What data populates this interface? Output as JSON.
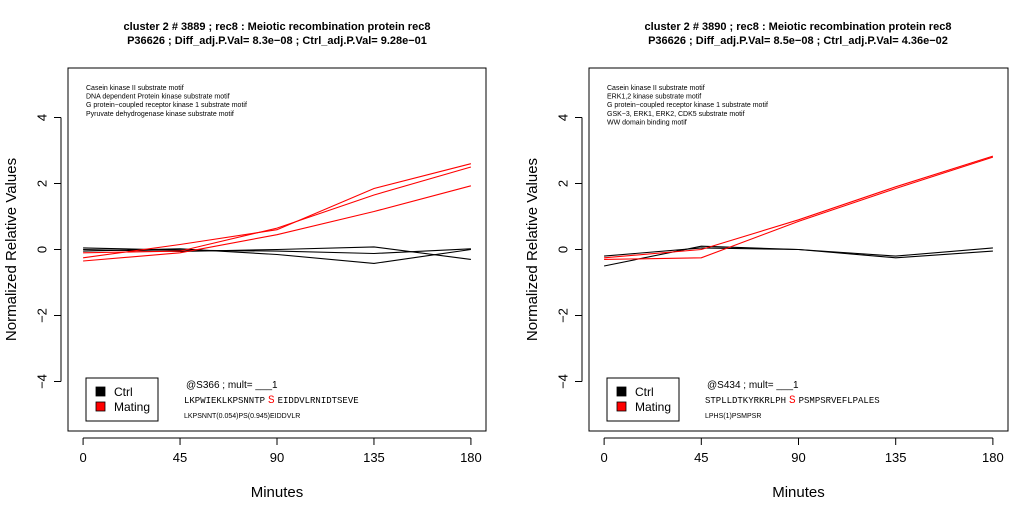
{
  "chart_data": [
    {
      "type": "line",
      "title_line1": "cluster 2 # 3889 ; rec8 : Meiotic recombination protein rec8",
      "title_line2": "P36626 ; Diff_adj.P.Val= 8.3e−08 ; Ctrl_adj.P.Val= 9.28e−01",
      "xlabel": "Minutes",
      "ylabel": "Normalized Relative Values",
      "x": [
        0,
        45,
        90,
        135,
        180
      ],
      "xlim": [
        -7,
        187
      ],
      "ylim": [
        -5.5,
        5.5
      ],
      "x_ticks": [
        "0",
        "45",
        "90",
        "135",
        "180"
      ],
      "y_ticks": [
        "−4",
        "−2",
        "0",
        "2",
        "4"
      ],
      "motifs": [
        "Casein kinase II substrate motif",
        "DNA dependent Protein kinase substrate motif",
        "G protein−coupled receptor kinase 1 substrate motif",
        "Pyruvate dehydrogenase kinase substrate motif"
      ],
      "site_label": "@S366 ; mult= ___1",
      "seq_before": "LKPWIEKLKPSNNTP",
      "seq_site": "S",
      "seq_after": "EIDDVLRNIDTSEVE",
      "peptide": "LKPSNNT(0.054)PS(0.945)EIDDVLR",
      "legend": [
        {
          "name": "Ctrl",
          "color": "#000000"
        },
        {
          "name": "Mating",
          "color": "#ff0000"
        }
      ],
      "series": [
        {
          "group": "Ctrl",
          "color": "#000000",
          "values": [
            0.05,
            -0.02,
            -0.05,
            -0.12,
            0.02
          ]
        },
        {
          "group": "Ctrl",
          "color": "#000000",
          "values": [
            -0.05,
            0.02,
            -0.15,
            -0.42,
            0.0
          ]
        },
        {
          "group": "Ctrl",
          "color": "#000000",
          "values": [
            0.0,
            -0.06,
            0.0,
            0.08,
            -0.3
          ]
        },
        {
          "group": "Mating",
          "color": "#ff0000",
          "values": [
            -0.25,
            0.15,
            0.6,
            1.85,
            2.6
          ]
        },
        {
          "group": "Mating",
          "color": "#ff0000",
          "values": [
            -0.1,
            -0.05,
            0.65,
            1.65,
            2.5
          ]
        },
        {
          "group": "Mating",
          "color": "#ff0000",
          "values": [
            -0.35,
            -0.1,
            0.45,
            1.15,
            1.93
          ]
        }
      ]
    },
    {
      "type": "line",
      "title_line1": "cluster 2 # 3890 ; rec8 : Meiotic recombination protein rec8",
      "title_line2": "P36626 ; Diff_adj.P.Val= 8.5e−08 ; Ctrl_adj.P.Val= 4.36e−02",
      "xlabel": "Minutes",
      "ylabel": "Normalized Relative Values",
      "x": [
        0,
        45,
        90,
        135,
        180
      ],
      "xlim": [
        -7,
        187
      ],
      "ylim": [
        -5.5,
        5.5
      ],
      "x_ticks": [
        "0",
        "45",
        "90",
        "135",
        "180"
      ],
      "y_ticks": [
        "−4",
        "−2",
        "0",
        "2",
        "4"
      ],
      "motifs": [
        "Casein kinase II substrate motif",
        "ERK1,2 kinase substrate motif",
        "G protein−coupled receptor kinase 1 substrate motif",
        "GSK−3, ERK1, ERK2, CDK5 substrate motif",
        "WW domain binding motif"
      ],
      "site_label": "@S434 ; mult= ___1",
      "seq_before": "STPLLDTKYRKRLPH",
      "seq_site": "S",
      "seq_after": "PSMPSRVEFLPALES",
      "peptide": "LPHS(1)PSMPSR",
      "legend": [
        {
          "name": "Ctrl",
          "color": "#000000"
        },
        {
          "name": "Mating",
          "color": "#ff0000"
        }
      ],
      "series": [
        {
          "group": "Ctrl",
          "color": "#000000",
          "values": [
            -0.5,
            0.1,
            0.0,
            -0.2,
            0.05
          ]
        },
        {
          "group": "Ctrl",
          "color": "#000000",
          "values": [
            -0.2,
            0.05,
            0.0,
            -0.25,
            -0.05
          ]
        },
        {
          "group": "Mating",
          "color": "#ff0000",
          "values": [
            -0.25,
            0.0,
            0.9,
            1.9,
            2.83
          ]
        },
        {
          "group": "Mating",
          "color": "#ff0000",
          "values": [
            -0.3,
            -0.25,
            0.85,
            1.85,
            2.8
          ]
        }
      ]
    }
  ]
}
